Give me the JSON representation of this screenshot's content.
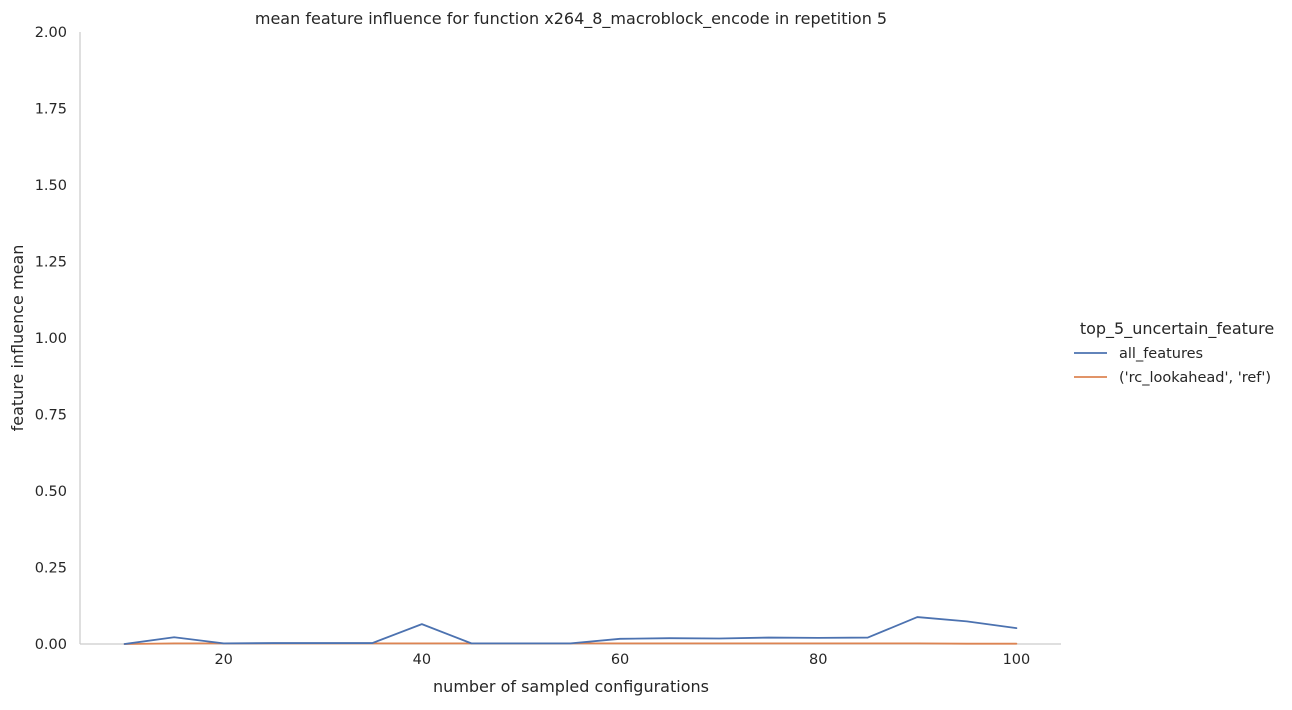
{
  "chart_data": {
    "type": "line",
    "title": "mean feature influence for function x264_8_macroblock_encode in repetition 5",
    "xlabel": "number of sampled configurations",
    "ylabel": "feature influence mean",
    "xlim": [
      5.5,
      104.5
    ],
    "ylim": [
      0,
      2
    ],
    "xticks": [
      20,
      40,
      60,
      80,
      100
    ],
    "xtick_labels": [
      "20",
      "40",
      "60",
      "80",
      "100"
    ],
    "yticks": [
      0,
      0.25,
      0.5,
      0.75,
      1.0,
      1.25,
      1.5,
      1.75,
      2.0
    ],
    "ytick_labels": [
      "0.00",
      "0.25",
      "0.50",
      "0.75",
      "1.00",
      "1.25",
      "1.50",
      "1.75",
      "2.00"
    ],
    "grid": false,
    "legend": {
      "title": "top_5_uncertain_feature",
      "placement": "right"
    },
    "series": [
      {
        "name": "all_features",
        "color": "#4c72b0",
        "x": [
          10,
          15,
          20,
          25,
          30,
          35,
          40,
          45,
          50,
          55,
          60,
          65,
          70,
          75,
          80,
          85,
          90,
          95,
          100
        ],
        "values": [
          0.0,
          0.022,
          0.002,
          0.003,
          0.003,
          0.003,
          0.065,
          0.002,
          0.002,
          0.002,
          0.017,
          0.019,
          0.018,
          0.021,
          0.02,
          0.021,
          0.088,
          0.074,
          0.052
        ]
      },
      {
        "name": "('rc_lookahead', 'ref')",
        "color": "#dd8452",
        "x": [
          10,
          15,
          20,
          25,
          30,
          35,
          40,
          45,
          50,
          55,
          60,
          65,
          70,
          75,
          80,
          85,
          90,
          95,
          100
        ],
        "values": [
          0.0,
          0.002,
          0.002,
          0.002,
          0.002,
          0.002,
          0.002,
          0.002,
          0.002,
          0.002,
          0.002,
          0.002,
          0.002,
          0.002,
          0.002,
          0.002,
          0.002,
          0.001,
          0.001
        ]
      }
    ]
  }
}
